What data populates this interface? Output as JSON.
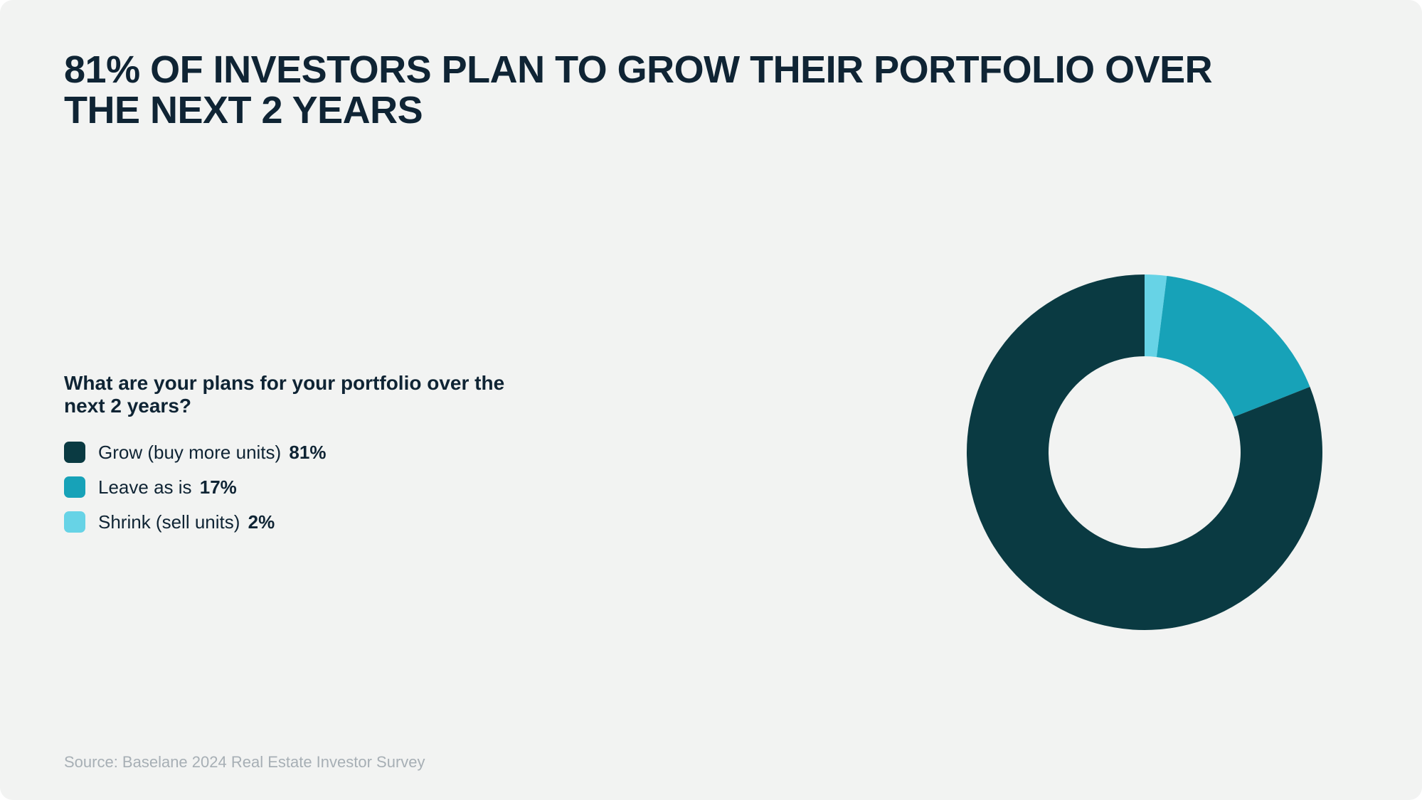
{
  "title": "81% OF INVESTORS PLAN TO GROW THEIR PORTFOLIO OVER THE NEXT 2 YEARS",
  "question": "What are your plans for your portfolio over the next 2 years?",
  "chart": {
    "type": "donut",
    "background_color": "#f2f3f2",
    "title_color": "#0f2434",
    "title_fontsize": 54,
    "question_fontsize": 28,
    "legend_fontsize": 26,
    "source_fontsize": 22,
    "source_color": "#a7afb5",
    "outer_radius": 250,
    "inner_radius": 135,
    "start_angle_deg": 0,
    "clockwise": true,
    "slices": [
      {
        "label": "Grow (buy more units)",
        "value": 81,
        "value_text": "81%",
        "color": "#0a3a42"
      },
      {
        "label": "Leave as is",
        "value": 17,
        "value_text": "17%",
        "color": "#17a2b8"
      },
      {
        "label": "Shrink (sell units)",
        "value": 2,
        "value_text": "2%",
        "color": "#67d3e6"
      }
    ]
  },
  "source": "Source: Baselane 2024 Real Estate Investor Survey"
}
